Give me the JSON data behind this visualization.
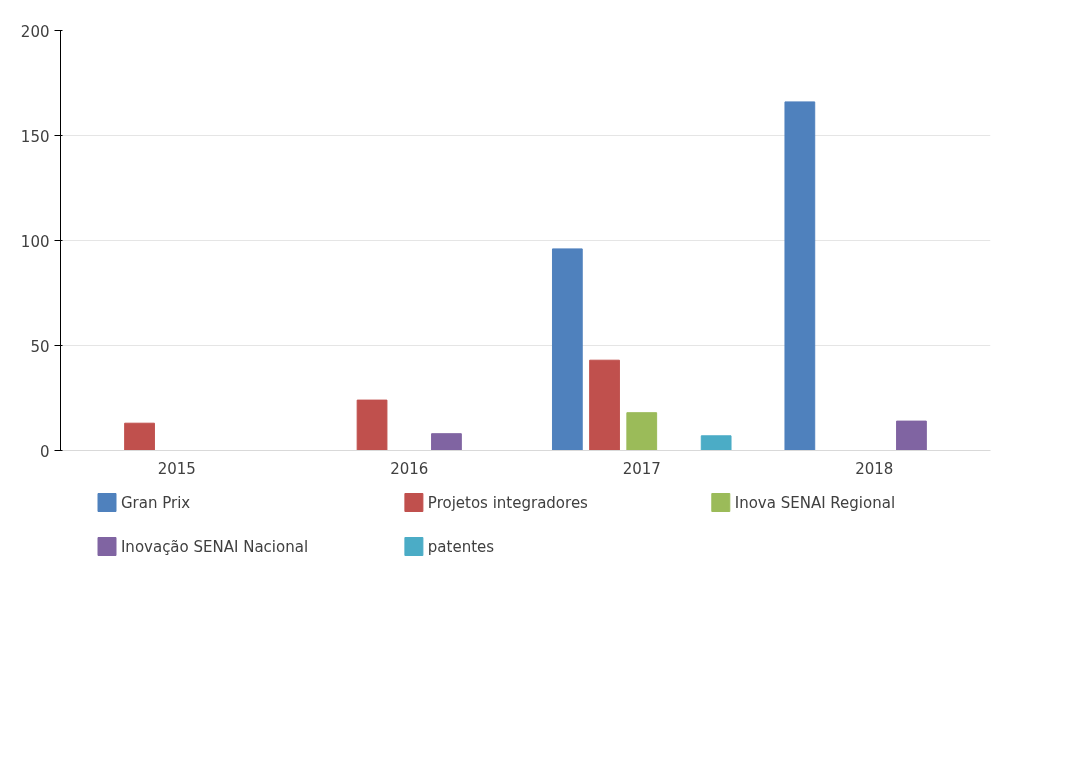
{
  "chart_data": {
    "type": "bar",
    "categories": [
      "2015",
      "2016",
      "2017",
      "2018"
    ],
    "series": [
      {
        "name": "Gran Prix",
        "color": "#4f81bd",
        "values": [
          null,
          null,
          96,
          166
        ]
      },
      {
        "name": "Projetos integradores",
        "color": "#c0504d",
        "values": [
          13,
          24,
          43,
          null
        ]
      },
      {
        "name": "Inova SENAI Regional",
        "color": "#9bbb59",
        "values": [
          null,
          null,
          18,
          null
        ]
      },
      {
        "name": "Inovação SENAI Nacional",
        "color": "#8064a2",
        "values": [
          null,
          8,
          null,
          14
        ]
      },
      {
        "name": "patentes",
        "color": "#4bacc6",
        "values": [
          null,
          null,
          7,
          null
        ]
      }
    ],
    "ylim": [
      0,
      200
    ],
    "yticks": [
      0,
      50,
      100,
      150,
      200
    ],
    "grid": "y",
    "legend": "bottom"
  }
}
